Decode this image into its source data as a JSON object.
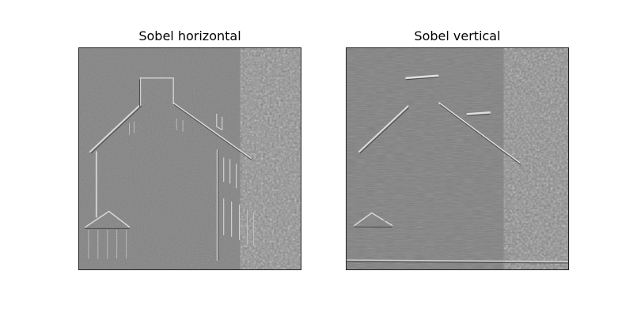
{
  "figure": {
    "panels": [
      {
        "title": "Sobel horizontal",
        "filter": "horizontal"
      },
      {
        "title": "Sobel vertical",
        "filter": "vertical"
      }
    ],
    "colors": {
      "background": "#7f7f7f",
      "edge_light": "#d8d8d8",
      "edge_dark": "#4a4a4a"
    }
  }
}
